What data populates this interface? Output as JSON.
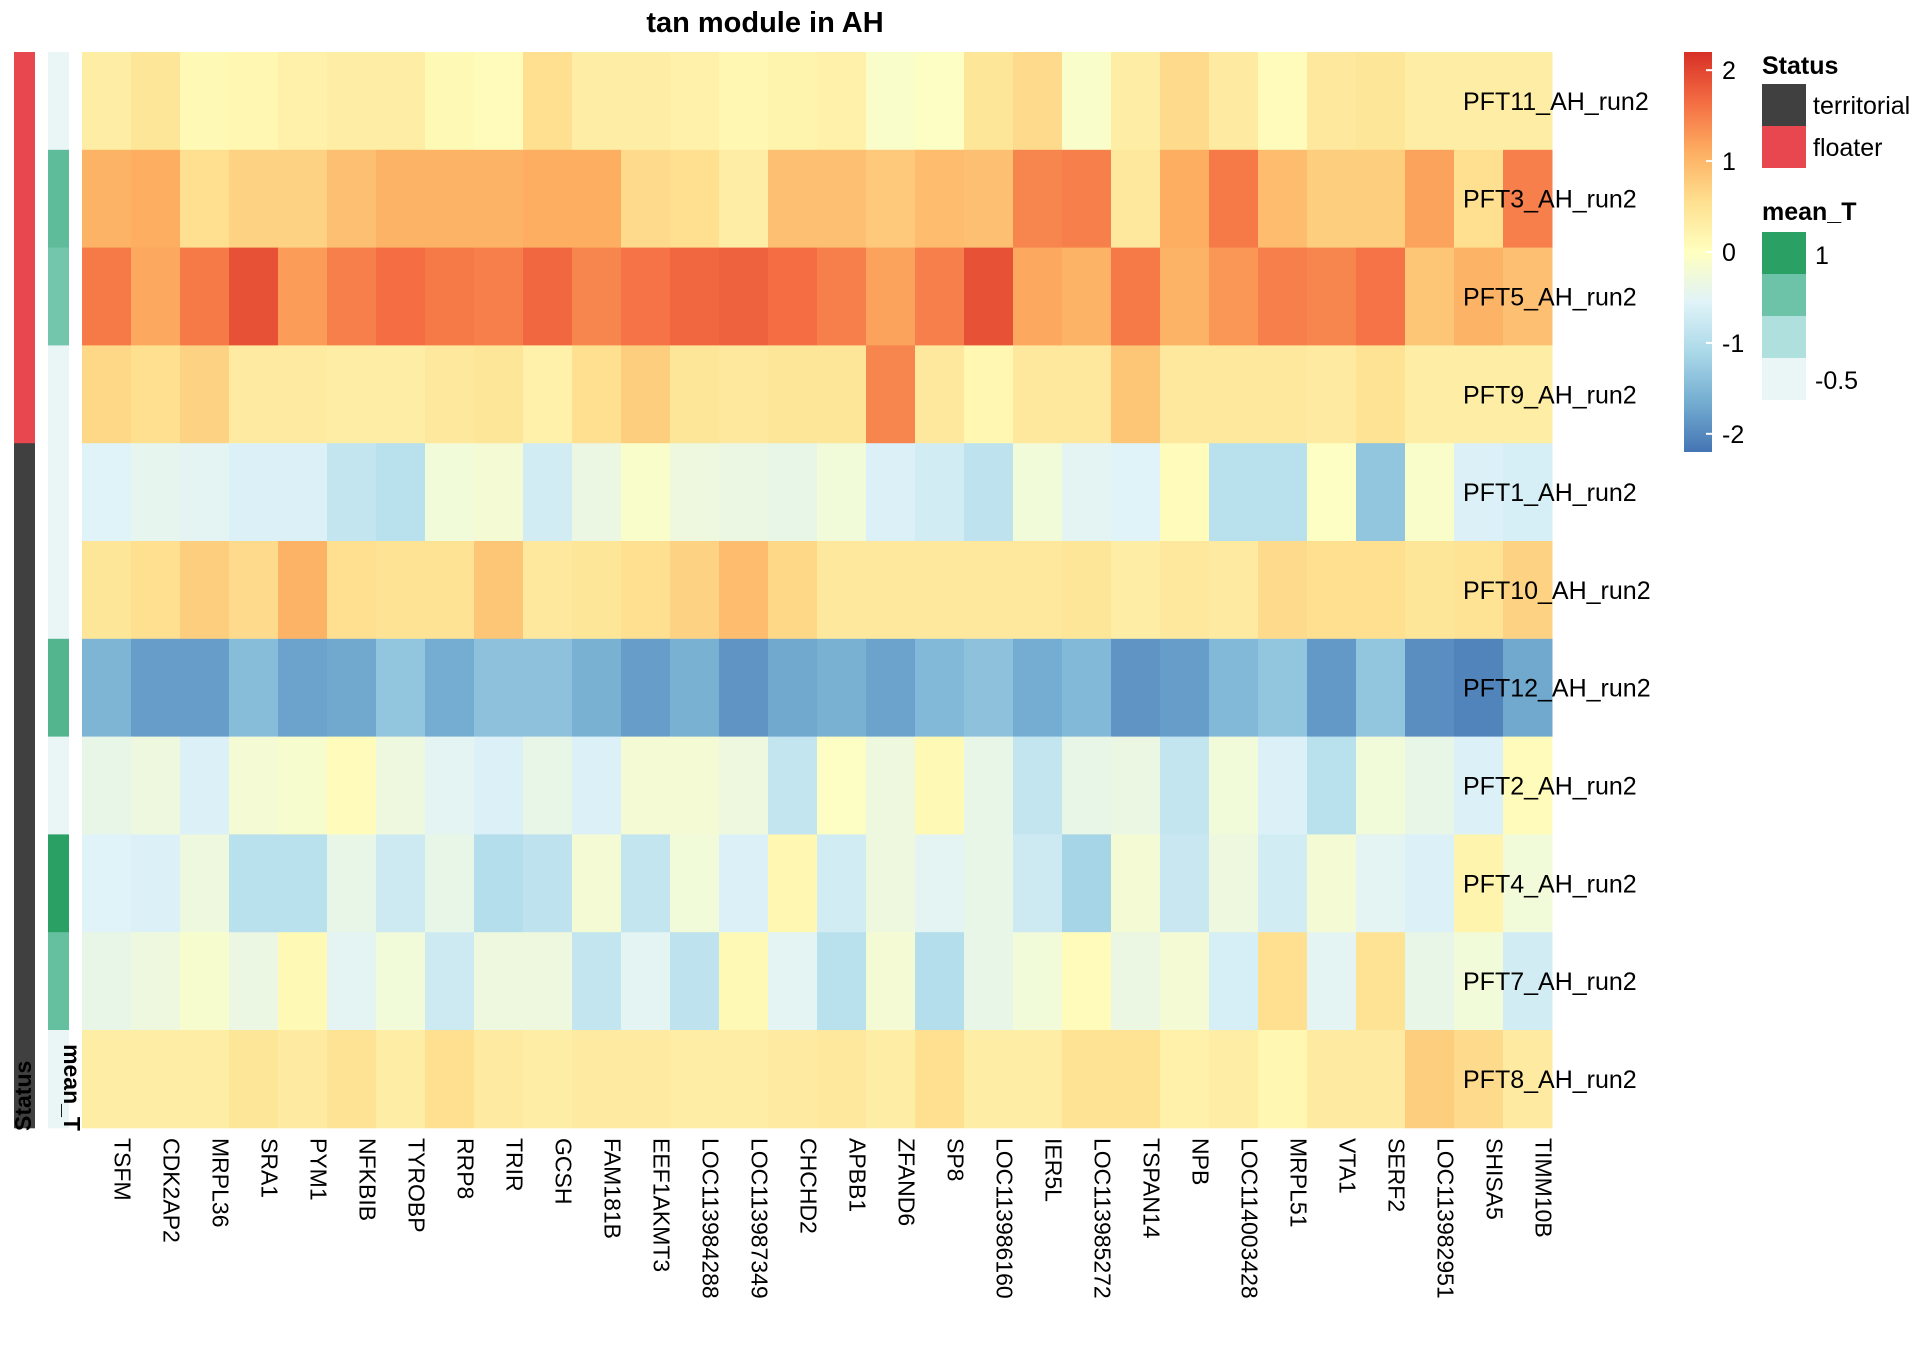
{
  "chart_data": {
    "type": "heatmap",
    "title": "tan module in AH",
    "genes": [
      "TSFM",
      "CDK2AP2",
      "MRPL36",
      "SRA1",
      "PYM1",
      "NFKBIB",
      "TYROBP",
      "RRP8",
      "TRIR",
      "GCSH",
      "FAM181B",
      "EEF1AKMT3",
      "LOC113984288",
      "LOC113987349",
      "CHCHD2",
      "APBB1",
      "ZFAND6",
      "SP8",
      "LOC113986160",
      "IER5L",
      "LOC113985272",
      "TSPAN14",
      "NPB",
      "LOC114003428",
      "MRPL51",
      "VTA1",
      "SERF2",
      "LOC113982951",
      "SHISA5",
      "TIMM10B"
    ],
    "samples": [
      {
        "name": "PFT11_AH_run2",
        "status": "floater",
        "mean_T": -0.75,
        "values": [
          0.3,
          0.45,
          0.1,
          0.15,
          0.25,
          0.3,
          0.3,
          0.1,
          0.05,
          0.55,
          0.3,
          0.3,
          0.25,
          0.15,
          0.2,
          0.25,
          -0.1,
          -0.05,
          0.45,
          0.6,
          -0.1,
          0.3,
          0.6,
          0.35,
          0.05,
          0.4,
          0.45,
          0.3,
          0.3,
          0.3
        ]
      },
      {
        "name": "PFT3_AH_run2",
        "status": "floater",
        "mean_T": 0.6,
        "values": [
          1.05,
          1.1,
          0.55,
          0.7,
          0.7,
          0.9,
          1.05,
          1.05,
          1.05,
          1.1,
          1.1,
          0.6,
          0.55,
          0.3,
          0.9,
          0.9,
          0.8,
          0.95,
          0.9,
          1.45,
          1.5,
          0.4,
          1.1,
          1.55,
          0.95,
          0.75,
          0.75,
          1.2,
          0.55,
          1.5
        ]
      },
      {
        "name": "PFT5_AH_run2",
        "status": "floater",
        "mean_T": 0.45,
        "values": [
          1.55,
          1.15,
          1.55,
          1.9,
          1.25,
          1.5,
          1.65,
          1.55,
          1.5,
          1.7,
          1.45,
          1.6,
          1.7,
          1.75,
          1.65,
          1.5,
          1.2,
          1.5,
          1.9,
          1.15,
          1.05,
          1.55,
          1.05,
          1.3,
          1.5,
          1.45,
          1.6,
          0.85,
          1.05,
          0.9
        ]
      },
      {
        "name": "PFT9_AH_run2",
        "status": "floater",
        "mean_T": -0.5,
        "values": [
          0.65,
          0.55,
          0.7,
          0.35,
          0.35,
          0.3,
          0.3,
          0.4,
          0.45,
          0.25,
          0.55,
          0.75,
          0.45,
          0.4,
          0.45,
          0.45,
          1.45,
          0.4,
          0.15,
          0.4,
          0.4,
          0.85,
          0.4,
          0.4,
          0.4,
          0.35,
          0.5,
          0.3,
          0.3,
          0.3
        ]
      },
      {
        "name": "PFT1_AH_run2",
        "status": "territorial",
        "mean_T": -0.85,
        "values": [
          -0.55,
          -0.45,
          -0.5,
          -0.6,
          -0.6,
          -0.85,
          -0.95,
          -0.25,
          -0.2,
          -0.7,
          -0.35,
          -0.1,
          -0.3,
          -0.35,
          -0.4,
          -0.25,
          -0.6,
          -0.7,
          -0.9,
          -0.25,
          -0.5,
          -0.55,
          0.05,
          -0.95,
          -0.95,
          -0.05,
          -1.35,
          -0.1,
          -0.6,
          -0.65
        ]
      },
      {
        "name": "PFT10_AH_run2",
        "status": "territorial",
        "mean_T": -0.95,
        "values": [
          0.45,
          0.55,
          0.75,
          0.6,
          1.05,
          0.55,
          0.5,
          0.5,
          0.85,
          0.4,
          0.45,
          0.55,
          0.7,
          0.95,
          0.65,
          0.4,
          0.4,
          0.4,
          0.4,
          0.4,
          0.45,
          0.3,
          0.4,
          0.35,
          0.6,
          0.55,
          0.55,
          0.45,
          0.5,
          0.7
        ]
      },
      {
        "name": "PFT12_AH_run2",
        "status": "territorial",
        "mean_T": 0.7,
        "values": [
          -1.55,
          -1.8,
          -1.8,
          -1.45,
          -1.75,
          -1.7,
          -1.35,
          -1.65,
          -1.4,
          -1.4,
          -1.6,
          -1.8,
          -1.6,
          -1.9,
          -1.7,
          -1.6,
          -1.75,
          -1.5,
          -1.4,
          -1.65,
          -1.5,
          -1.9,
          -1.8,
          -1.5,
          -1.35,
          -1.85,
          -1.35,
          -1.95,
          -2.05,
          -1.7
        ]
      },
      {
        "name": "PFT2_AH_run2",
        "status": "territorial",
        "mean_T": -0.8,
        "values": [
          -0.4,
          -0.3,
          -0.6,
          -0.2,
          -0.15,
          0.05,
          -0.3,
          -0.5,
          -0.6,
          -0.4,
          -0.6,
          -0.2,
          -0.2,
          -0.3,
          -0.85,
          -0.05,
          -0.3,
          0.1,
          -0.4,
          -0.85,
          -0.4,
          -0.35,
          -0.85,
          -0.25,
          -0.6,
          -0.95,
          -0.25,
          -0.4,
          -0.6,
          0.05
        ]
      },
      {
        "name": "PFT4_AH_run2",
        "status": "territorial",
        "mean_T": 1.0,
        "values": [
          -0.55,
          -0.6,
          -0.3,
          -0.95,
          -0.95,
          -0.4,
          -0.75,
          -0.4,
          -1.0,
          -0.9,
          -0.2,
          -0.85,
          -0.25,
          -0.6,
          0.15,
          -0.7,
          -0.3,
          -0.5,
          -0.4,
          -0.75,
          -1.15,
          -0.2,
          -0.8,
          -0.3,
          -0.7,
          -0.2,
          -0.5,
          -0.6,
          0.2,
          -0.25
        ]
      },
      {
        "name": "PFT7_AH_run2",
        "status": "territorial",
        "mean_T": 0.55,
        "values": [
          -0.4,
          -0.3,
          -0.15,
          -0.35,
          0.1,
          -0.5,
          -0.25,
          -0.75,
          -0.3,
          -0.3,
          -0.85,
          -0.5,
          -0.9,
          0.1,
          -0.5,
          -0.95,
          -0.2,
          -1.0,
          -0.4,
          -0.25,
          0.05,
          -0.35,
          -0.2,
          -0.65,
          0.55,
          -0.5,
          0.5,
          -0.4,
          -0.25,
          -0.7
        ]
      },
      {
        "name": "PFT8_AH_run2",
        "status": "territorial",
        "mean_T": -0.85,
        "values": [
          0.3,
          0.3,
          0.3,
          0.45,
          0.35,
          0.5,
          0.3,
          0.55,
          0.35,
          0.3,
          0.35,
          0.35,
          0.3,
          0.3,
          0.35,
          0.4,
          0.3,
          0.55,
          0.3,
          0.3,
          0.5,
          0.5,
          0.25,
          0.3,
          0.15,
          0.35,
          0.35,
          0.75,
          0.6,
          0.35
        ]
      }
    ],
    "color_scale": {
      "min": -2.2,
      "max": 2.2,
      "ticks": [
        2,
        1,
        0,
        -1,
        -2
      ],
      "stops": [
        "#4575b4",
        "#74add1",
        "#abd9e9",
        "#e0f3f8",
        "#ffffbf",
        "#fee090",
        "#fdae61",
        "#f46d43",
        "#d73027"
      ]
    },
    "status_legend": {
      "title": "Status",
      "items": [
        {
          "label": "territorial",
          "color": "#404040"
        },
        {
          "label": "floater",
          "color": "#e8474f"
        }
      ]
    },
    "meanT_legend": {
      "title": "mean_T",
      "labels": [
        "1",
        "-0.5"
      ],
      "colors": [
        "#2aa065",
        "#6cc3a7",
        "#b0e0dd",
        "#eaf6f6"
      ]
    },
    "annotation_labels": {
      "status": "Status",
      "mean_T": "mean_T"
    }
  }
}
